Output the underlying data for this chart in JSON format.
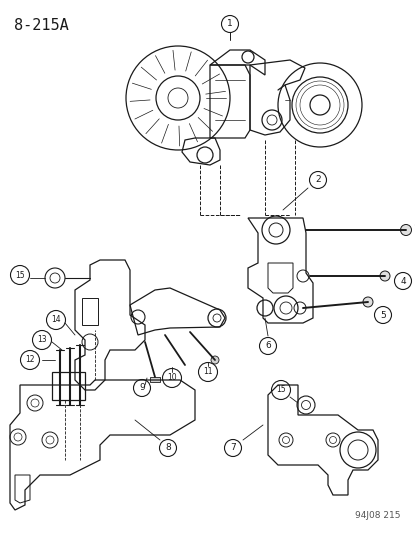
{
  "title": "8-215A",
  "footer": "94J08 215",
  "bg_color": "#ffffff",
  "line_color": "#1a1a1a",
  "title_fontsize": 11,
  "footer_fontsize": 6.5,
  "fig_w": 4.15,
  "fig_h": 5.33,
  "dpi": 100
}
